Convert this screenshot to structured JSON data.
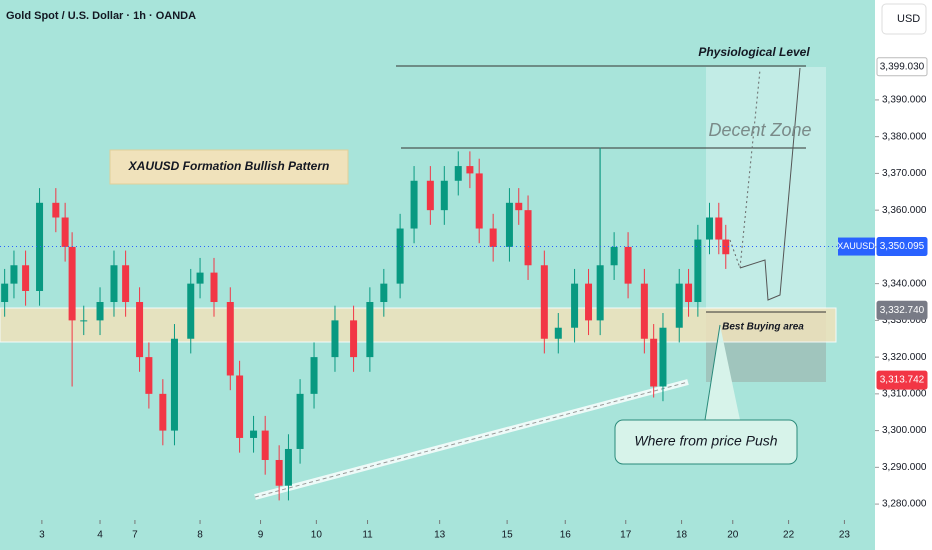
{
  "chart_data": {
    "type": "candlestick",
    "title": "Gold Spot / U.S. Dollar · 1h · OANDA",
    "currency": "USD",
    "symbol": "XAUUSD",
    "up_color": "#089981",
    "down_color": "#f23645",
    "x": [
      2,
      6,
      11,
      17,
      24,
      28,
      31,
      36,
      43,
      49,
      54,
      60,
      64,
      70,
      75,
      82,
      86,
      92,
      99,
      103,
      109,
      114,
      120,
      124,
      129,
      135,
      144,
      152,
      159,
      165,
      172,
      178,
      185,
      191,
      197,
      202,
      206,
      212,
      219,
      223,
      227,
      234,
      240,
      247,
      253,
      258,
      264,
      270,
      277,
      281,
      285,
      292,
      296,
      300,
      305,
      309,
      312
    ],
    "open": [
      3335,
      3340,
      3345,
      3338,
      3362,
      3358,
      3350,
      3330,
      3330,
      3335,
      3345,
      3335,
      3320,
      3310,
      3300,
      3325,
      3340,
      3343,
      3335,
      3315,
      3298,
      3300,
      3292,
      3285,
      3295,
      3310,
      3320,
      3330,
      3320,
      3335,
      3340,
      3355,
      3368,
      3360,
      3368,
      3372,
      3370,
      3355,
      3350,
      3362,
      3360,
      3345,
      3325,
      3328,
      3340,
      3330,
      3345,
      3350,
      3340,
      3325,
      3312,
      3328,
      3340,
      3335,
      3352,
      3358,
      3352
    ],
    "high": [
      3344,
      3349,
      3349,
      3366,
      3366,
      3362,
      3354,
      3334,
      3339,
      3349,
      3349,
      3339,
      3324,
      3314,
      3329,
      3344,
      3347,
      3347,
      3339,
      3319,
      3304,
      3304,
      3296,
      3299,
      3314,
      3324,
      3334,
      3334,
      3339,
      3344,
      3359,
      3372,
      3372,
      3372,
      3376,
      3376,
      3374,
      3359,
      3366,
      3366,
      3364,
      3349,
      3332,
      3344,
      3344,
      3377,
      3354,
      3354,
      3344,
      3329,
      3332,
      3344,
      3344,
      3356,
      3362,
      3362,
      3356
    ],
    "low": [
      3331,
      3336,
      3334,
      3334,
      3354,
      3346,
      3312,
      3326,
      3326,
      3331,
      3331,
      3316,
      3306,
      3296,
      3296,
      3321,
      3336,
      3331,
      3311,
      3294,
      3294,
      3288,
      3281,
      3281,
      3291,
      3306,
      3316,
      3316,
      3316,
      3331,
      3336,
      3351,
      3356,
      3356,
      3364,
      3366,
      3351,
      3346,
      3346,
      3356,
      3341,
      3321,
      3321,
      3324,
      3326,
      3326,
      3341,
      3336,
      3321,
      3309,
      3308,
      3324,
      3331,
      3331,
      3348,
      3348,
      3344
    ],
    "close": [
      3340,
      3345,
      3338,
      3362,
      3358,
      3350,
      3330,
      3330,
      3335,
      3345,
      3335,
      3320,
      3310,
      3300,
      3325,
      3340,
      3343,
      3335,
      3315,
      3298,
      3300,
      3292,
      3285,
      3295,
      3310,
      3320,
      3330,
      3320,
      3335,
      3340,
      3355,
      3368,
      3360,
      3368,
      3372,
      3370,
      3355,
      3350,
      3362,
      3360,
      3345,
      3325,
      3328,
      3340,
      3330,
      3345,
      3350,
      3340,
      3325,
      3312,
      3328,
      3340,
      3335,
      3352,
      3358,
      3352,
      3348
    ],
    "xlim": [
      0,
      374
    ],
    "xticks": [
      {
        "value": 18,
        "label": "3"
      },
      {
        "value": 43,
        "label": "4"
      },
      {
        "value": 58,
        "label": "7"
      },
      {
        "value": 86,
        "label": "8"
      },
      {
        "value": 112,
        "label": "9"
      },
      {
        "value": 136,
        "label": "10"
      },
      {
        "value": 158,
        "label": "11"
      },
      {
        "value": 189,
        "label": "13"
      },
      {
        "value": 218,
        "label": "15"
      },
      {
        "value": 243,
        "label": "16"
      },
      {
        "value": 269,
        "label": "17"
      },
      {
        "value": 293,
        "label": "18"
      },
      {
        "value": 315,
        "label": "20"
      },
      {
        "value": 339,
        "label": "22"
      },
      {
        "value": 363,
        "label": "23"
      }
    ],
    "ylim": [
      3267.5,
      3417.2
    ],
    "yticks": [
      {
        "value": 3280,
        "label": "3,280.000"
      },
      {
        "value": 3290,
        "label": "3,290.000"
      },
      {
        "value": 3300,
        "label": "3,300.000"
      },
      {
        "value": 3310,
        "label": "3,310.000"
      },
      {
        "value": 3320,
        "label": "3,320.000"
      },
      {
        "value": 3330,
        "label": "3,330.000"
      },
      {
        "value": 3340,
        "label": "3,340.000"
      },
      {
        "value": 3350,
        "label": "3,350.000"
      },
      {
        "value": 3360,
        "label": "3,360.000"
      },
      {
        "value": 3370,
        "label": "3,370.000"
      },
      {
        "value": 3380,
        "label": "3,380.000"
      },
      {
        "value": 3390,
        "label": "3,390.000"
      }
    ],
    "price_labels": [
      {
        "value": 3399.03,
        "label": "3,399.030",
        "color": "#ffffff"
      },
      {
        "value": 3350.095,
        "label": "3,350.095",
        "color": "#2962ff"
      },
      {
        "value": 3332.74,
        "label": "3,332.740",
        "color": "#787b86"
      },
      {
        "value": 3313.742,
        "label": "3,313.742",
        "color": "#f23645"
      }
    ],
    "annotations": [
      "XAUUSD Formation Bullish Pattern",
      "Physiological Level",
      "Decent Zone",
      "Best Buying area",
      "Where from price Push"
    ]
  }
}
